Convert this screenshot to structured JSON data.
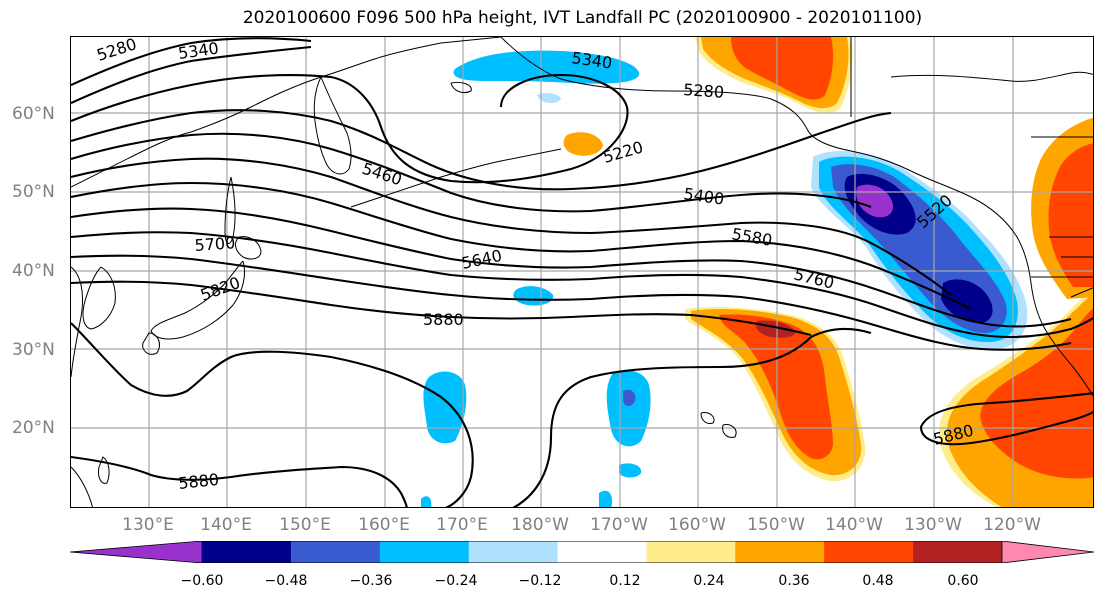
{
  "title": "2020100600 F096 500 hPa height, IVT Landfall PC (2020100900 - 2020101100)",
  "map": {
    "lat_labels": [
      "60°N",
      "50°N",
      "40°N",
      "30°N",
      "20°N"
    ],
    "lon_labels": [
      "130°E",
      "140°E",
      "150°E",
      "160°E",
      "170°E",
      "180°W",
      "170°W",
      "160°W",
      "150°W",
      "140°W",
      "130°W",
      "120°W"
    ],
    "contour_labels": [
      "5280",
      "5340",
      "5340",
      "5280",
      "5220",
      "5460",
      "5400",
      "5580",
      "5520",
      "5700",
      "5640",
      "5760",
      "5820",
      "5880",
      "5880",
      "5880"
    ]
  },
  "colorbar": {
    "colors": [
      "#9932CC",
      "#00008B",
      "#3A5BCF",
      "#00BFFF",
      "#B0E2FF",
      "#FFFFFF",
      "#FFEC8B",
      "#FFA500",
      "#FF4500",
      "#B22222",
      "#FF88B0"
    ],
    "ticks": [
      "−0.60",
      "−0.48",
      "−0.36",
      "−0.24",
      "−0.12",
      "0.12",
      "0.24",
      "0.36",
      "0.48",
      "0.60"
    ]
  }
}
